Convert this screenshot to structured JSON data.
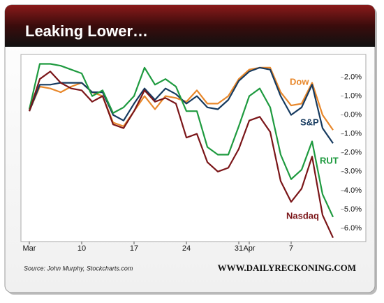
{
  "header": {
    "title": "Leaking Lower…"
  },
  "chart_data": {
    "type": "line",
    "categories": [
      "Mar",
      null,
      null,
      null,
      null,
      "10",
      null,
      null,
      null,
      null,
      "17",
      null,
      null,
      null,
      null,
      "24",
      null,
      null,
      null,
      null,
      "31",
      "Apr",
      null,
      null,
      null,
      "7",
      null,
      null,
      null,
      null
    ],
    "series": [
      {
        "name": "Dow",
        "color": "#e8872a",
        "values": [
          0.2,
          1.5,
          1.4,
          1.2,
          1.5,
          1.7,
          1.2,
          1.0,
          -0.4,
          -0.6,
          0.2,
          1.0,
          0.3,
          1.0,
          0.9,
          0.7,
          1.3,
          0.6,
          0.6,
          1.0,
          1.9,
          2.4,
          2.5,
          2.5,
          1.2,
          0.5,
          0.6,
          1.7,
          0.0,
          -0.8
        ]
      },
      {
        "name": "S&P",
        "color": "#163a5f",
        "values": [
          0.2,
          1.6,
          1.6,
          1.7,
          1.7,
          1.7,
          1.2,
          1.2,
          0.0,
          -0.3,
          0.6,
          1.4,
          0.8,
          1.4,
          1.1,
          0.6,
          1.0,
          0.4,
          0.3,
          0.8,
          1.8,
          2.3,
          2.5,
          2.4,
          1.0,
          0.0,
          0.4,
          1.6,
          -0.7,
          -1.5
        ]
      },
      {
        "name": "RUT",
        "color": "#1e9a3f",
        "values": [
          0.3,
          2.7,
          2.7,
          2.6,
          2.4,
          2.2,
          1.0,
          1.3,
          0.1,
          0.4,
          1.0,
          2.5,
          1.6,
          1.9,
          1.5,
          0.2,
          0.2,
          -1.7,
          -2.1,
          -2.1,
          -0.6,
          1.0,
          1.4,
          0.4,
          -2.1,
          -3.4,
          -2.9,
          -1.4,
          -4.2,
          -5.4
        ]
      },
      {
        "name": "Nasdaq",
        "color": "#7a1518",
        "values": [
          0.2,
          1.9,
          2.3,
          1.7,
          1.4,
          1.3,
          0.7,
          1.0,
          -0.5,
          -0.7,
          0.2,
          1.3,
          0.7,
          0.9,
          0.6,
          -1.2,
          -1.0,
          -2.5,
          -3.0,
          -2.8,
          -1.8,
          -0.3,
          -0.1,
          -0.9,
          -3.5,
          -4.6,
          -3.9,
          -2.2,
          -5.3,
          -6.5
        ]
      }
    ],
    "ylim": [
      -6.7,
      3.2
    ],
    "yticks": [
      {
        "value": 2,
        "label": "2.0%"
      },
      {
        "value": 1,
        "label": "1.0%"
      },
      {
        "value": 0,
        "label": "0.0%"
      },
      {
        "value": -1,
        "label": "-1.0%"
      },
      {
        "value": -2,
        "label": "-2.0%"
      },
      {
        "value": -3,
        "label": "-3.0%"
      },
      {
        "value": -4,
        "label": "-4.0%"
      },
      {
        "value": -5,
        "label": "-5.0%"
      },
      {
        "value": -6,
        "label": "-6.0%"
      }
    ],
    "y_axis_side": "right"
  },
  "footer": {
    "source": "Source: John Murphy, Stockcharts.com",
    "site": "WWW.DAILYRECKONING.COM"
  }
}
